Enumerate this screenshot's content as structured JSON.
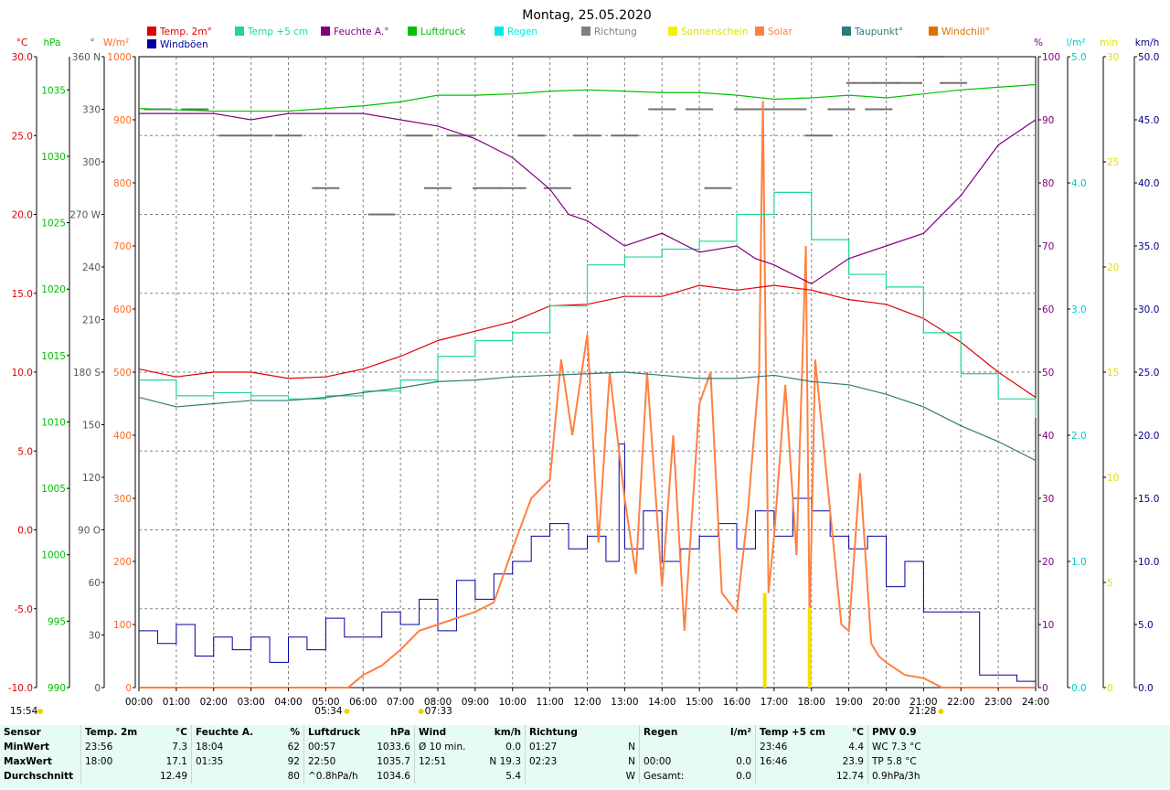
{
  "chart_data": {
    "type": "line",
    "title": "Montag, 25.05.2020",
    "x_ticks": [
      "00:00",
      "01:00",
      "02:00",
      "03:00",
      "04:00",
      "05:00",
      "06:00",
      "07:00",
      "08:00",
      "09:00",
      "10:00",
      "11:00",
      "12:00",
      "13:00",
      "14:00",
      "15:00",
      "16:00",
      "17:00",
      "18:00",
      "19:00",
      "20:00",
      "21:00",
      "22:00",
      "23:00",
      "24:00"
    ],
    "axes": {
      "temp": {
        "unit": "°C",
        "ticks": [
          "30.0",
          "25.0",
          "20.0",
          "15.0",
          "10.0",
          "5.0",
          "0.0",
          "-5.0",
          "-10.0"
        ],
        "range": [
          -10,
          30
        ],
        "color": "#e00000"
      },
      "press": {
        "unit": "hPa",
        "ticks": [
          "1035",
          "1030",
          "1025",
          "1020",
          "1015",
          "1010",
          "1005",
          "1000",
          "995",
          "990"
        ],
        "range": [
          990,
          1037.5
        ],
        "color": "#00c000"
      },
      "dir": {
        "unit": "°",
        "ticks": [
          "360 N",
          "330",
          "300",
          "270 W",
          "240",
          "210",
          "180 S",
          "150",
          "120",
          "90 O",
          "60",
          "30",
          "0"
        ],
        "range": [
          0,
          360
        ],
        "color": "#555555"
      },
      "solar": {
        "unit": "W/m²",
        "ticks": [
          "1000",
          "900",
          "800",
          "700",
          "600",
          "500",
          "400",
          "300",
          "200",
          "100",
          "0"
        ],
        "range": [
          0,
          1000
        ],
        "color": "#ff6a20"
      },
      "hum": {
        "unit": "%",
        "ticks": [
          "100",
          "90",
          "80",
          "70",
          "60",
          "50",
          "40",
          "30",
          "20",
          "10",
          "0"
        ],
        "range": [
          0,
          100
        ],
        "color": "#800080"
      },
      "rain": {
        "unit": "l/m²",
        "ticks": [
          "5.0",
          "4.0",
          "3.0",
          "2.0",
          "1.0",
          "0.0"
        ],
        "range": [
          0,
          5
        ],
        "color": "#00c8c8"
      },
      "sun": {
        "unit": "min",
        "ticks": [
          "30",
          "25",
          "20",
          "15",
          "10",
          "5",
          "0"
        ],
        "range": [
          0,
          30
        ],
        "color": "#e0e000"
      },
      "wind": {
        "unit": "km/h",
        "ticks": [
          "50.0",
          "45.0",
          "40.0",
          "35.0",
          "30.0",
          "25.0",
          "20.0",
          "15.0",
          "10.0",
          "5.0",
          "0.0"
        ],
        "range": [
          0,
          50
        ],
        "color": "#00008b"
      }
    },
    "legend": [
      {
        "label": "Temp. 2m°",
        "color": "#e00000"
      },
      {
        "label": "Temp +5 cm",
        "color": "#20d890"
      },
      {
        "label": "Feuchte A.°",
        "color": "#800080"
      },
      {
        "label": "Luftdruck",
        "color": "#00c000"
      },
      {
        "label": "Regen",
        "color": "#00e8e8"
      },
      {
        "label": "Richtung",
        "color": "#808080"
      },
      {
        "label": "Sonnenschein",
        "color": "#f0f000"
      },
      {
        "label": "Solar",
        "color": "#ff8040"
      },
      {
        "label": "Taupunkt°",
        "color": "#2e7a78"
      },
      {
        "label": "Windchill°",
        "color": "#e07000"
      },
      {
        "label": "Windböen",
        "color": "#0000a0"
      }
    ],
    "series": [
      {
        "name": "Temp. 2m°",
        "axis": "temp",
        "x": [
          0,
          1,
          2,
          3,
          4,
          5,
          6,
          7,
          8,
          9,
          10,
          11,
          12,
          13,
          14,
          15,
          16,
          17,
          18,
          19,
          20,
          21,
          22,
          23,
          24
        ],
        "y": [
          10.2,
          9.7,
          10.0,
          10.0,
          9.6,
          9.7,
          10.2,
          11.0,
          12.0,
          12.6,
          13.2,
          14.2,
          14.3,
          14.8,
          14.8,
          15.5,
          15.2,
          15.5,
          15.2,
          14.6,
          14.3,
          13.4,
          11.9,
          10.0,
          8.4
        ]
      },
      {
        "name": "Temp +5 cm",
        "axis": "temp",
        "x": [
          0,
          1,
          2,
          3,
          4,
          5,
          6,
          7,
          8,
          9,
          10,
          11,
          12,
          13,
          14,
          15,
          16,
          17,
          18,
          19,
          20,
          21,
          22,
          23,
          24
        ],
        "y": [
          9.5,
          8.5,
          8.7,
          8.5,
          8.3,
          8.5,
          8.8,
          9.5,
          11.0,
          12.0,
          12.5,
          14.2,
          16.8,
          17.3,
          17.8,
          18.3,
          20.0,
          21.4,
          18.4,
          16.2,
          15.4,
          12.5,
          9.9,
          8.3,
          7.1
        ]
      },
      {
        "name": "Feuchte A.°",
        "axis": "hum",
        "x": [
          0,
          1,
          2,
          3,
          4,
          5,
          6,
          7,
          8,
          9,
          10,
          11,
          11.5,
          12,
          13,
          14,
          15,
          16,
          16.5,
          17,
          18,
          19,
          20,
          21,
          22,
          23,
          24
        ],
        "y": [
          91,
          91,
          91,
          90,
          91,
          91,
          91,
          90,
          89,
          87,
          84,
          79,
          75,
          74,
          70,
          72,
          69,
          70,
          68,
          67,
          64,
          68,
          70,
          72,
          78,
          86,
          90
        ]
      },
      {
        "name": "Luftdruck",
        "axis": "press",
        "x": [
          0,
          2,
          4,
          5,
          6,
          7,
          8,
          9,
          10,
          11,
          12,
          13,
          14,
          15,
          16,
          17,
          18,
          19,
          20,
          21,
          22,
          23,
          24
        ],
        "y": [
          1033.6,
          1033.4,
          1033.4,
          1033.6,
          1033.8,
          1034.1,
          1034.6,
          1034.6,
          1034.7,
          1034.9,
          1035.0,
          1034.9,
          1034.8,
          1034.8,
          1034.6,
          1034.3,
          1034.4,
          1034.6,
          1034.4,
          1034.7,
          1035.0,
          1035.2,
          1035.4
        ]
      },
      {
        "name": "Taupunkt°",
        "axis": "temp",
        "x": [
          0,
          1,
          2,
          3,
          4,
          5,
          6,
          7,
          8,
          9,
          10,
          11,
          12,
          13,
          14,
          15,
          16,
          17,
          18,
          19,
          20,
          21,
          22,
          23,
          24
        ],
        "y": [
          8.4,
          7.8,
          8.0,
          8.2,
          8.2,
          8.4,
          8.7,
          9.0,
          9.4,
          9.5,
          9.7,
          9.8,
          9.9,
          10.0,
          9.8,
          9.6,
          9.6,
          9.8,
          9.4,
          9.2,
          8.6,
          7.8,
          6.6,
          5.6,
          4.4
        ]
      }
    ],
    "solar_samples": {
      "axis": "solar",
      "x": [
        0,
        5.6,
        6,
        6.5,
        7,
        7.5,
        8,
        8.5,
        9,
        9.5,
        10,
        10.5,
        11,
        11.3,
        11.6,
        12,
        12.3,
        12.6,
        13,
        13.3,
        13.6,
        14,
        14.3,
        14.6,
        15,
        15.3,
        15.6,
        16,
        16.3,
        16.6,
        16.7,
        16.85,
        17,
        17.3,
        17.6,
        17.85,
        17.95,
        18.1,
        18.5,
        18.8,
        19,
        19.3,
        19.6,
        19.8,
        20,
        20.5,
        21,
        21.5,
        22,
        24
      ],
      "y": [
        0,
        0,
        20,
        35,
        60,
        90,
        100,
        110,
        120,
        135,
        220,
        300,
        330,
        520,
        400,
        560,
        230,
        500,
        300,
        180,
        500,
        160,
        400,
        90,
        450,
        500,
        150,
        120,
        280,
        500,
        930,
        150,
        240,
        480,
        210,
        700,
        100,
        520,
        280,
        100,
        90,
        340,
        70,
        50,
        40,
        20,
        15,
        0,
        0,
        0
      ]
    },
    "wind_samples": {
      "axis": "wind",
      "x": [
        0,
        0.5,
        1,
        1.5,
        2,
        2.5,
        3,
        3.5,
        4,
        4.5,
        5,
        5.5,
        6,
        6.5,
        7,
        7.5,
        8,
        8.5,
        9,
        9.5,
        10,
        10.5,
        11,
        11.5,
        12,
        12.5,
        12.85,
        13,
        13.5,
        14,
        14.5,
        15,
        15.5,
        16,
        16.5,
        17,
        17.5,
        18,
        18.5,
        19,
        19.5,
        20,
        20.5,
        21,
        21.5,
        22,
        22.5,
        23,
        23.5,
        24
      ],
      "y": [
        4.5,
        3.5,
        5,
        2.5,
        4,
        3,
        4,
        2,
        4,
        3,
        5.5,
        4,
        4,
        6,
        5,
        7,
        4.5,
        8.5,
        7,
        9,
        10,
        12,
        13,
        11,
        12,
        10,
        19.3,
        11,
        14,
        10,
        11,
        12,
        13,
        11,
        14,
        12,
        15,
        14,
        12,
        11,
        12,
        8,
        10,
        6,
        6,
        6,
        1,
        1,
        0.5,
        0.5
      ]
    },
    "direction_samples": {
      "axis": "dir",
      "x": [
        0.5,
        1.5,
        2.5,
        3.2,
        4,
        5,
        6.5,
        7.5,
        8,
        8.6,
        9.3,
        10,
        10.5,
        11.2,
        12,
        13,
        14,
        15,
        15.5,
        16.3,
        17,
        17.5,
        18.2,
        18.8,
        19.3,
        19.8,
        20,
        20.6,
        21.2,
        21.8
      ],
      "y": [
        330,
        330,
        315,
        315,
        315,
        285,
        270,
        315,
        285,
        315,
        285,
        285,
        315,
        285,
        315,
        315,
        330,
        330,
        285,
        330,
        330,
        330,
        315,
        330,
        345,
        330,
        345,
        345,
        360,
        345
      ]
    },
    "sunshine_marks": [
      {
        "x": 16.75,
        "y": 4.5
      },
      {
        "x": 17.95,
        "y": 3.8
      }
    ],
    "sunrise": "05:34",
    "sunset": "21:28",
    "now": "15:54",
    "marker": "07:33"
  },
  "stats": {
    "rows": [
      "MinWert",
      "MaxWert",
      "Durchschnitt"
    ],
    "headers": {
      "sensor": "Sensor",
      "temp_name": "Temp. 2m",
      "temp_unit": "°C",
      "hum_name": "Feuchte A.",
      "hum_unit": "%",
      "press_name": "Luftdruck",
      "press_unit": "hPa",
      "wind_name": "Wind",
      "wind_unit": "km/h",
      "dir_name": "Richtung",
      "rain_name": "Regen",
      "rain_unit": "l/m²",
      "t5_name": "Temp +5 cm",
      "t5_unit": "°C",
      "pmv": "PMV 0.9"
    },
    "min": {
      "temp_time": "23:56",
      "temp_val": "7.3",
      "hum_time": "18:04",
      "hum_val": "62",
      "press_time": "00:57",
      "press_val": "1033.6",
      "wind_time": "Ø 10 min.",
      "wind_val": "0.0",
      "dir_time": "01:27",
      "dir_val": "N",
      "rain_time": "",
      "rain_val": "",
      "t5_time": "23:46",
      "t5_val": "4.4",
      "pmv": "WC 7.3 °C"
    },
    "max": {
      "temp_time": "18:00",
      "temp_val": "17.1",
      "hum_time": "01:35",
      "hum_val": "92",
      "press_time": "22:50",
      "press_val": "1035.7",
      "wind_time": "12:51",
      "wind_val": "N 19.3",
      "dir_time": "02:23",
      "dir_val": "N",
      "rain_time": "00:00",
      "rain_val": "0.0",
      "t5_time": "16:46",
      "t5_val": "23.9",
      "pmv": "TP 5.8 °C"
    },
    "avg": {
      "temp_time": "",
      "temp_val": "12.49",
      "hum_time": "",
      "hum_val": "80",
      "press_time": "^0.8hPa/h",
      "press_val": "1034.6",
      "wind_time": "",
      "wind_val": "5.4",
      "dir_time": "",
      "dir_val": "W",
      "rain_time": "Gesamt:",
      "rain_val": "0.0",
      "t5_time": "",
      "t5_val": "12.74",
      "pmv": "0.9hPa/3h"
    }
  }
}
